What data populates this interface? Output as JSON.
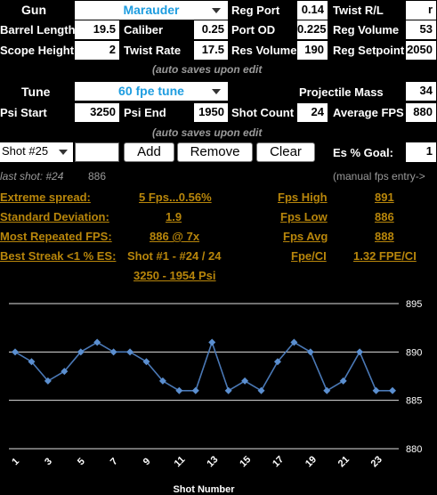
{
  "gun": {
    "label": "Gun",
    "selected": "Marauder",
    "barrel_length_label": "Barrel Length",
    "barrel_length": "19.5",
    "scope_height_label": "Scope Height",
    "scope_height": "2",
    "caliber_label": "Caliber",
    "caliber": "0.25",
    "twist_rate_label": "Twist Rate",
    "twist_rate": "17.5",
    "reg_port_label": "Reg Port",
    "reg_port": "0.14",
    "port_od_label": "Port OD",
    "port_od": "0.225",
    "res_volume_label": "Res Volume",
    "res_volume": "190",
    "twist_rl_label": "Twist R/L",
    "twist_rl": "r",
    "reg_volume_label": "Reg Volume",
    "reg_volume": "53",
    "reg_setpoint_label": "Reg Setpoint",
    "reg_setpoint": "2050"
  },
  "notes": {
    "auto_save": "(auto saves upon edit",
    "manual_fps": "(manual fps entry->"
  },
  "tune": {
    "label": "Tune",
    "selected": "60 fpe tune",
    "psi_start_label": "Psi Start",
    "psi_start": "3250",
    "psi_end_label": "Psi End",
    "psi_end": "1950",
    "shot_count_label": "Shot Count",
    "shot_count": "24",
    "projectile_mass_label": "Projectile Mass",
    "projectile_mass": "34",
    "average_fps_label": "Average FPS",
    "average_fps": "880"
  },
  "entry": {
    "shot_select": "Shot #25",
    "fps_input": "",
    "add_label": "Add",
    "remove_label": "Remove",
    "clear_label": "Clear",
    "es_goal_label": "Es % Goal:",
    "es_goal": "1"
  },
  "last_shot": {
    "label": "last shot: #24",
    "value": "886"
  },
  "stats": {
    "extreme_spread_label": "Extreme spread:",
    "extreme_spread": "5 Fps...0.56%",
    "std_dev_label": "Standard Deviation:",
    "std_dev": "1.9",
    "most_repeated_label": "Most Repeated FPS:",
    "most_repeated": "886 @ 7x",
    "best_streak_label": "Best Streak <1 % ES:",
    "best_streak": "Shot #1 - #24 / 24",
    "best_streak_psi": "3250 - 1954 Psi",
    "fps_high_label": "Fps High",
    "fps_high": "891",
    "fps_low_label": "Fps Low",
    "fps_low": "886",
    "fps_avg_label": "Fps Avg",
    "fps_avg": "888",
    "fpe_ci_label": "Fpe/CI",
    "fpe_ci": "1.32 FPE/CI"
  },
  "colors": {
    "accent": "#1e9de0",
    "gold": "#b8860b",
    "line": "#4a78b5",
    "marker": "#5b8fd0"
  },
  "chart_data": {
    "type": "line",
    "xlabel": "Shot Number",
    "ylabel": "",
    "x": [
      1,
      2,
      3,
      4,
      5,
      6,
      7,
      8,
      9,
      10,
      11,
      12,
      13,
      14,
      15,
      16,
      17,
      18,
      19,
      20,
      21,
      22,
      23,
      24
    ],
    "y": [
      890,
      889,
      887,
      888,
      890,
      891,
      890,
      890,
      889,
      887,
      886,
      886,
      891,
      886,
      887,
      886,
      889,
      891,
      890,
      886,
      887,
      890,
      886,
      886
    ],
    "x_tick_labels": [
      "1",
      "3",
      "5",
      "7",
      "9",
      "11",
      "13",
      "15",
      "17",
      "19",
      "21",
      "23"
    ],
    "y_ticks": [
      880,
      885,
      890,
      895
    ],
    "ylim": [
      880,
      895
    ],
    "grid": true,
    "legend": "none"
  }
}
